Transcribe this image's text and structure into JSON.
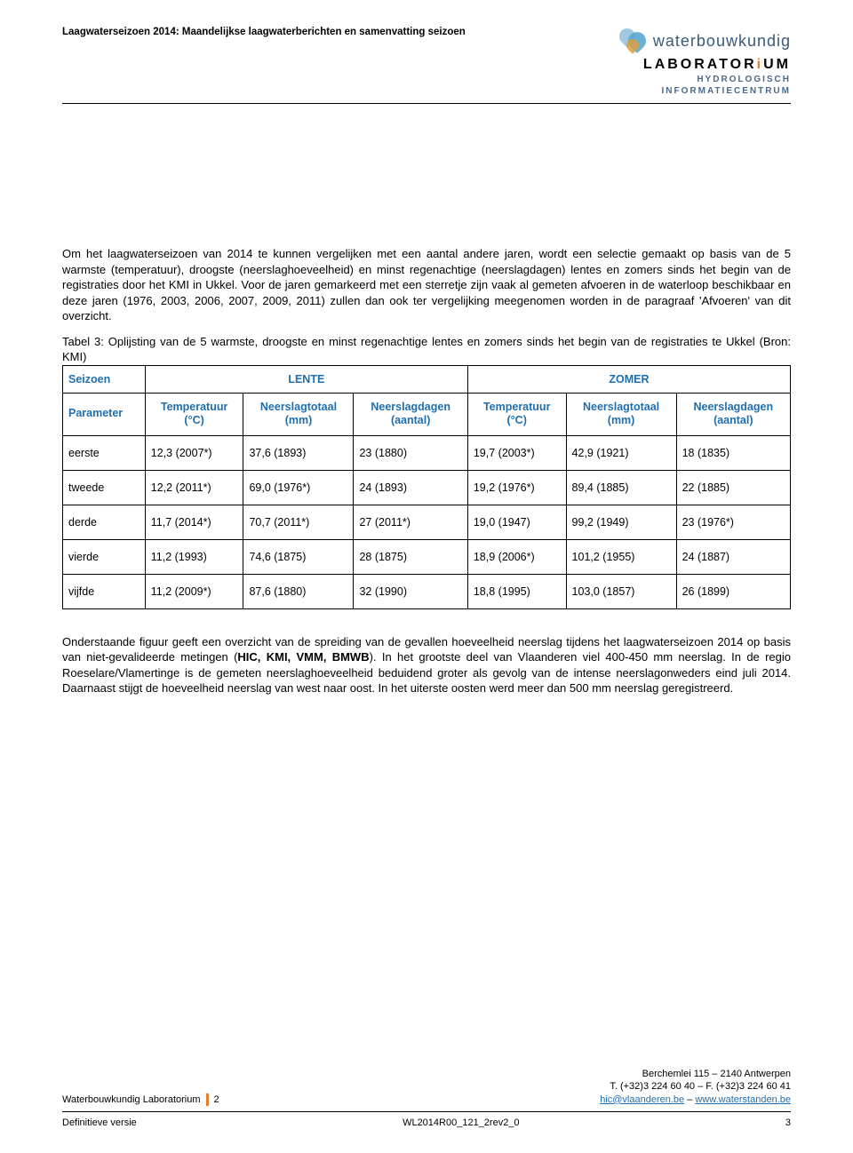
{
  "header": {
    "title": "Laagwaterseizoen 2014: Maandelijkse laagwaterberichten en samenvatting seizoen",
    "logo_word1": "waterbouwkundig",
    "logo_word2_a": "LABORATOR",
    "logo_word2_b": "i",
    "logo_word2_c": "UM",
    "logo_sub1": "HYDROLOGISCH",
    "logo_sub2": "INFORMATIECENTRUM"
  },
  "para1": "Om het laagwaterseizoen van 2014 te kunnen vergelijken met een aantal andere jaren, wordt een selectie gemaakt op basis van de 5 warmste (temperatuur), droogste (neerslaghoeveelheid) en minst regenachtige (neerslagdagen) lentes en zomers sinds het begin van de registraties door het KMI in Ukkel. Voor de jaren gemarkeerd met een sterretje zijn vaak al gemeten afvoeren in de waterloop beschikbaar en deze jaren (1976, 2003, 2006, 2007, 2009, 2011) zullen dan ook ter vergelijking meegenomen worden in de paragraaf 'Afvoeren' van dit overzicht.",
  "tableCaption": "Tabel 3: Oplijsting van de 5 warmste, droogste en minst regenachtige lentes en zomers sinds het begin van de registraties te Ukkel (Bron: KMI)",
  "table": {
    "header1": {
      "seizoen": "Seizoen",
      "lente": "LENTE",
      "zomer": "ZOMER"
    },
    "header2": {
      "parameter": "Parameter",
      "temp": "Temperatuur\n(°C)",
      "neerslagtot": "Neerslagtotaal\n(mm)",
      "neerslagdag": "Neerslagdagen\n(aantal)"
    },
    "rows": [
      {
        "label": "eerste",
        "c": [
          "12,3 (2007*)",
          "37,6 (1893)",
          "23 (1880)",
          "19,7 (2003*)",
          "42,9 (1921)",
          "18 (1835)"
        ]
      },
      {
        "label": "tweede",
        "c": [
          "12,2 (2011*)",
          "69,0 (1976*)",
          "24 (1893)",
          "19,2 (1976*)",
          "89,4 (1885)",
          "22 (1885)"
        ]
      },
      {
        "label": "derde",
        "c": [
          "11,7 (2014*)",
          "70,7 (2011*)",
          "27 (2011*)",
          "19,0 (1947)",
          "99,2 (1949)",
          "23 (1976*)"
        ]
      },
      {
        "label": "vierde",
        "c": [
          "11,2 (1993)",
          "74,6 (1875)",
          "28 (1875)",
          "18,9 (2006*)",
          "101,2 (1955)",
          "24 (1887)"
        ]
      },
      {
        "label": "vijfde",
        "c": [
          "11,2 (2009*)",
          "87,6 (1880)",
          "32 (1990)",
          "18,8 (1995)",
          "103,0 (1857)",
          "26 (1899)"
        ]
      }
    ]
  },
  "para2_a": "Onderstaande figuur geeft een overzicht van de spreiding van de gevallen hoeveelheid neerslag tijdens het laagwaterseizoen 2014 op basis van niet-gevalideerde metingen (",
  "para2_b": "HIC, KMI, VMM, BMWB",
  "para2_c": "). In het grootste deel van Vlaanderen viel 400-450 mm neerslag. In de regio Roeselare/Vlamertinge is de gemeten neerslaghoeveelheid beduidend groter als gevolg van de intense neerslagonweders eind juli 2014. Daarnaast stijgt de hoeveelheid neerslag van west naar oost. In het uiterste oosten werd meer dan 500 mm neerslag geregistreerd.",
  "footer": {
    "lab": "Waterbouwkundig Laboratorium",
    "pg_top": "2",
    "addr": "Berchemlei 115 – 2140 Antwerpen",
    "tel": "T. (+32)3 224 60 40 – F. (+32)3 224 60 41",
    "email": "hic@vlaanderen.be",
    "sep": " – ",
    "web": "www.waterstanden.be",
    "versie": "Definitieve versie",
    "code": "WL2014R00_121_2rev2_0",
    "pg_bottom": "3"
  }
}
